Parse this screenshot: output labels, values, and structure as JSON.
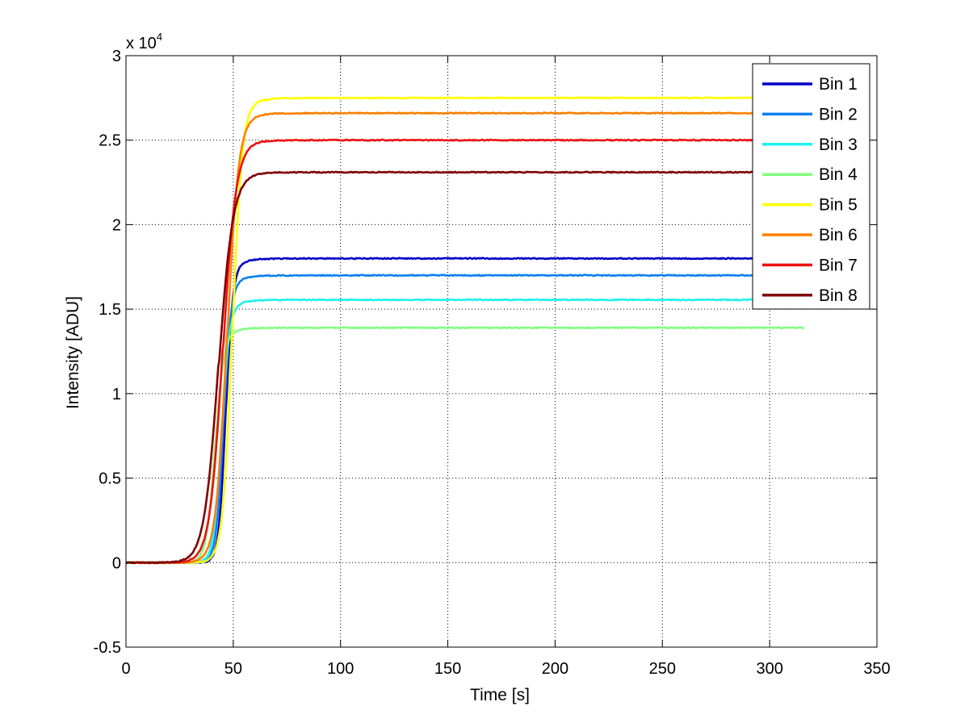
{
  "chart_data": {
    "type": "line",
    "xlabel": "Time [s]",
    "ylabel": "Intensity [ADU]",
    "y_multiplier": "x 10",
    "y_multiplier_exp": "4",
    "xlim": [
      0,
      350
    ],
    "ylim": [
      -0.5,
      3
    ],
    "xticks": [
      0,
      50,
      100,
      150,
      200,
      250,
      300,
      350
    ],
    "yticks": [
      -0.5,
      0,
      0.5,
      1,
      1.5,
      2,
      2.5,
      3
    ],
    "xtick_labels": [
      "0",
      "50",
      "100",
      "150",
      "200",
      "250",
      "300",
      "350"
    ],
    "ytick_labels": [
      "-0.5",
      "0",
      "0.5",
      "1",
      "1.5",
      "2",
      "2.5",
      "3"
    ],
    "grid": true,
    "legend_position": "top-right",
    "x_end": 316,
    "series": [
      {
        "name": "Bin 1",
        "color": "#0000c8",
        "plateau": 1.8,
        "midpoint": 46.5,
        "width": 1.6
      },
      {
        "name": "Bin 2",
        "color": "#0a7ff0",
        "plateau": 1.7,
        "midpoint": 45.5,
        "width": 1.7
      },
      {
        "name": "Bin 3",
        "color": "#20f0f0",
        "plateau": 1.555,
        "midpoint": 44.5,
        "width": 1.8
      },
      {
        "name": "Bin 4",
        "color": "#80ff80",
        "plateau": 1.39,
        "midpoint": 41.5,
        "width": 2.0
      },
      {
        "name": "Bin 5",
        "color": "#ffff00",
        "plateau": 2.75,
        "midpoint": 49.5,
        "width": 2.2
      },
      {
        "name": "Bin 6",
        "color": "#ff8000",
        "plateau": 2.66,
        "midpoint": 47.0,
        "width": 2.6
      },
      {
        "name": "Bin 7",
        "color": "#ee1010",
        "plateau": 2.5,
        "midpoint": 45.0,
        "width": 3.0
      },
      {
        "name": "Bin 8",
        "color": "#800000",
        "plateau": 2.31,
        "midpoint": 43.0,
        "width": 3.3
      }
    ]
  }
}
